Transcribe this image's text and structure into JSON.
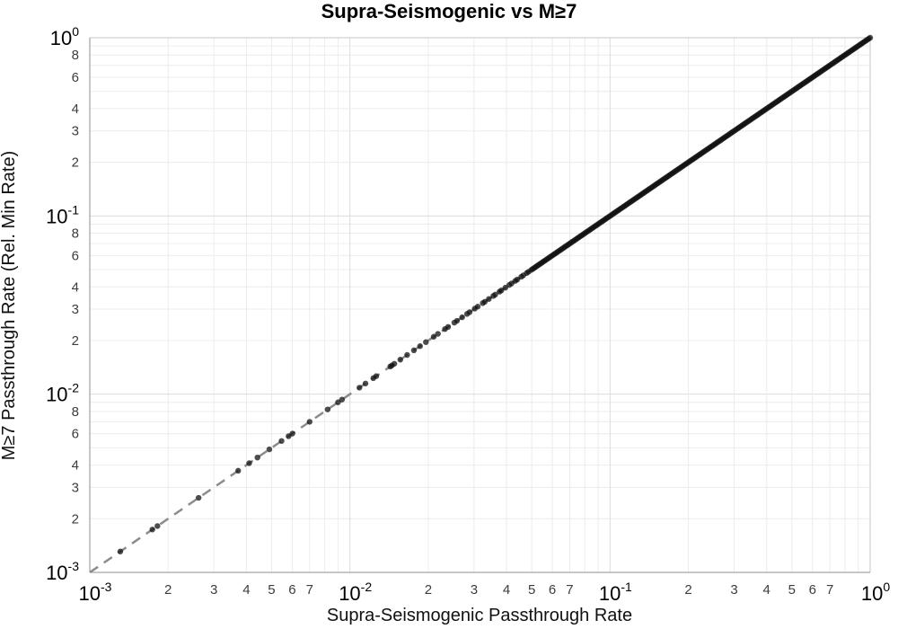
{
  "page": {
    "background": "#ffffff"
  },
  "chart_data": {
    "type": "scatter",
    "title": "Supra-Seismogenic vs M≥7",
    "xlabel": "Supra-Seismogenic Passthrough Rate",
    "ylabel": "M≥7 Passthrough Rate (Rel. Min Rate)",
    "x_scale": "log",
    "y_scale": "log",
    "xlim": [
      0.001,
      1.0
    ],
    "ylim": [
      0.001,
      1.0
    ],
    "grid": true,
    "legend": false,
    "tick_base": "10",
    "x_major_tick_exponents": [
      -3,
      -2,
      -1,
      0
    ],
    "y_major_tick_exponents": [
      0,
      -1,
      -2,
      -3
    ],
    "x_minor_labeled_digits": [
      2,
      3,
      4,
      5,
      6,
      7
    ],
    "y_minor_labeled_digits": [
      2,
      3,
      4,
      6,
      8
    ],
    "colors": {
      "minor_grid": "#ececec",
      "major_grid": "#dcdcdc",
      "axis_line_dark": "#8f8f8f",
      "axis_line_light": "#c4c4c4",
      "major_tick_text": "#000000",
      "minor_tick_text": "#3d3d3d"
    },
    "reference_line": {
      "relation": "y = x",
      "style": "dashed",
      "color": "#8c8c8c",
      "width": 2.5,
      "dash": "11 8"
    },
    "marker": {
      "shape": "circle",
      "color": "#111111",
      "opacity": 0.75,
      "radius": 3.2
    },
    "series_relation": "all points lie on the identity line y = x",
    "points_x": [
      0.00131,
      0.00174,
      0.00182,
      0.00262,
      0.00372,
      0.0041,
      0.00441,
      0.0049,
      0.00546,
      0.00581,
      0.00601,
      0.007,
      0.00821,
      0.009,
      0.00932,
      0.01088,
      0.01148,
      0.0123,
      0.01262,
      0.01429,
      0.0145,
      0.01482,
      0.01562,
      0.0166,
      0.01762,
      0.0186,
      0.01959,
      0.021,
      0.0218,
      0.0232,
      0.02385,
      0.0252,
      0.0258,
      0.027,
      0.0282,
      0.02883,
      0.0302,
      0.031,
      0.03241,
      0.033,
      0.0342,
      0.0356,
      0.0362,
      0.0376,
      0.0382,
      0.0396,
      0.041,
      0.0418,
      0.0432,
      0.044,
      0.0456,
      0.0464,
      0.0478,
      0.0486,
      0.0498
    ],
    "dense_points": {
      "x_min": 0.0505,
      "x_max": 1.0,
      "count": 235,
      "distribution": "log-uniform",
      "note": "points overlap so densely they render as a solid black line up to (1,1)"
    }
  }
}
